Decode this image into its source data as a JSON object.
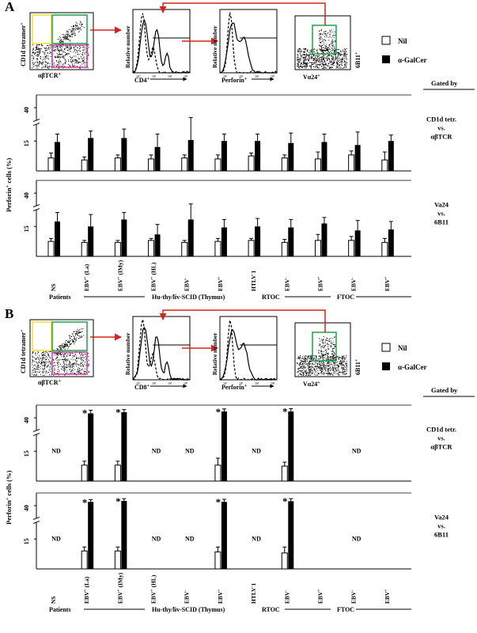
{
  "chart_data": [
    {
      "panel": "A",
      "type": "bar",
      "panel_letter": "A",
      "ylabel": "Perforin+ cells (%)",
      "y_ticks": [
        15,
        40
      ],
      "categories": [
        "NS",
        "EBV+ (La)",
        "EBV+ (IMy)",
        "EBV+ (HL)",
        "EBV-",
        "EBV+",
        "HTLV-1",
        "EBV-",
        "EBV+",
        "EBV-",
        "EBV+"
      ],
      "series_legend": [
        "Nil",
        "α-GalCer"
      ],
      "gated_by_label": "Gated by",
      "rows": [
        {
          "gate": [
            "CD1d tetr.",
            "vs.",
            "αβTCR"
          ],
          "nil": [
            6.5,
            5.5,
            6.5,
            6.0,
            6.5,
            6.0,
            7.5,
            6.5,
            6.0,
            8.0,
            5.5
          ],
          "nil_err": [
            2.5,
            1.5,
            1.5,
            2.0,
            1.5,
            2.0,
            1.5,
            1.5,
            3.5,
            2.0,
            4.0
          ],
          "galcer": [
            14.5,
            16.5,
            16.5,
            12.0,
            15.5,
            15.0,
            15.0,
            14.0,
            14.5,
            13.0,
            15.0
          ],
          "galcer_err": [
            4.0,
            3.5,
            4.5,
            6.5,
            9.0,
            3.5,
            3.5,
            5.0,
            4.0,
            6.5,
            3.0
          ]
        },
        {
          "gate": [
            "Va24",
            "vs.",
            "6B11"
          ],
          "nil": [
            7.5,
            7.0,
            7.0,
            8.0,
            7.0,
            7.5,
            8.0,
            7.0,
            8.0,
            8.0,
            7.0
          ],
          "nil_err": [
            1.5,
            1.0,
            1.0,
            1.0,
            1.0,
            1.5,
            1.0,
            1.5,
            3.0,
            2.0,
            2.0
          ],
          "galcer": [
            17.5,
            15.0,
            18.5,
            11.0,
            18.5,
            14.5,
            15.0,
            14.5,
            16.5,
            13.0,
            13.5
          ],
          "galcer_err": [
            4.5,
            6.0,
            3.5,
            5.0,
            4.5,
            4.0,
            4.0,
            4.0,
            3.0,
            5.0,
            4.0
          ]
        }
      ]
    },
    {
      "panel": "B",
      "type": "bar",
      "panel_letter": "B",
      "ylabel": "Perforin+ cells (%)",
      "y_ticks": [
        15,
        40
      ],
      "categories": [
        "NS",
        "EBV+ (La)",
        "EBV+ (IMy)",
        "EBV+ (HL)",
        "EBV-",
        "EBV+",
        "HTLV-1",
        "EBV-",
        "EBV+",
        "EBV-",
        "EBV+"
      ],
      "series_legend": [
        "Nil",
        "α-GalCer"
      ],
      "gated_by_label": "Gated by",
      "nd_label": "ND",
      "star_label": "*",
      "rows": [
        {
          "gate": [
            "CD1d tetr.",
            "vs.",
            "αβTCR"
          ],
          "nd": [
            true,
            false,
            false,
            true,
            true,
            false,
            true,
            false,
            false,
            true,
            false
          ],
          "nil": [
            null,
            8.0,
            8.0,
            null,
            null,
            8.0,
            null,
            7.5,
            null,
            10.0,
            null
          ],
          "nil_err": [
            null,
            2.0,
            2.0,
            null,
            null,
            3.5,
            null,
            2.0,
            null,
            3.0,
            null
          ],
          "galcer": [
            null,
            47.0,
            49.0,
            null,
            null,
            50.0,
            null,
            50.0,
            null,
            50.5,
            null
          ],
          "galcer_err": [
            null,
            5.0,
            4.0,
            null,
            null,
            4.0,
            null,
            4.5,
            null,
            4.0,
            null
          ],
          "star": [
            false,
            true,
            true,
            false,
            false,
            true,
            false,
            true,
            false,
            true,
            false
          ],
          "_note": "data positioned per visible bars"
        },
        {
          "gate": [
            "Va24",
            "vs.",
            "6B11"
          ],
          "nd": [
            true,
            false,
            false,
            true,
            true,
            false,
            true,
            false,
            false,
            true,
            false
          ],
          "nil": [
            null,
            9.0,
            9.0,
            null,
            null,
            8.5,
            null,
            8.0,
            null,
            9.0,
            null
          ],
          "nil_err": [
            null,
            2.0,
            2.0,
            null,
            null,
            2.5,
            null,
            3.0,
            null,
            2.5,
            null
          ],
          "galcer": [
            null,
            46.0,
            47.5,
            null,
            null,
            46.0,
            null,
            47.0,
            null,
            47.5,
            null
          ],
          "galcer_err": [
            null,
            3.5,
            3.5,
            null,
            null,
            4.0,
            null,
            4.0,
            null,
            3.5,
            null
          ],
          "star": [
            false,
            true,
            true,
            false,
            false,
            true,
            false,
            true,
            false,
            true,
            false
          ]
        }
      ]
    }
  ],
  "groups": [
    {
      "label": "Patients"
    },
    {
      "label": "Hu-thy/liv-SCID (Thymus)"
    },
    {
      "label": "RTOC"
    },
    {
      "label": "FTOC"
    }
  ],
  "flow": {
    "tetramer_axis": "CD1d tetramer+",
    "tcr_axis": "αβTCR+",
    "rel_number": "Relative number",
    "cd4_axis": "CD4+",
    "cd8_axis": "CD8+",
    "perforin_axis": "Perforin+",
    "va24_axis": "Vα24+",
    "b11_axis": "6B11+"
  },
  "colors": {
    "arrow": "#d9231c",
    "gate_green": "#1aa34a",
    "gate_yellow": "#f2e033",
    "gate_pink": "#d93aa8"
  }
}
